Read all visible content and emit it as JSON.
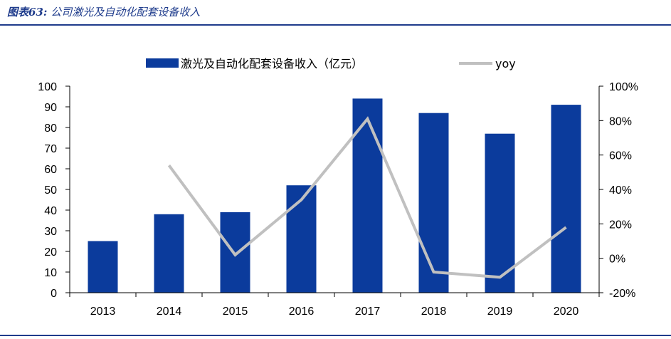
{
  "figure": {
    "label": "图表63:",
    "caption": "公司激光及自动化配套设备收入"
  },
  "colors": {
    "bar": "#0b3b9c",
    "line": "#c0c0c0",
    "accent": "#1f3c8c"
  },
  "chart_data": {
    "type": "bar",
    "categories": [
      "2013",
      "2014",
      "2015",
      "2016",
      "2017",
      "2018",
      "2019",
      "2020"
    ],
    "series": [
      {
        "name": "激光及自动化配套设备收入（亿元）",
        "type": "bar",
        "axis": "left",
        "values": [
          25,
          38,
          39,
          52,
          94,
          87,
          77,
          91
        ]
      },
      {
        "name": "yoy",
        "type": "line",
        "axis": "right",
        "values": [
          null,
          54,
          2,
          34,
          81,
          -8,
          -11,
          18
        ]
      }
    ],
    "ylim_left": [
      0,
      100
    ],
    "yticks_left": [
      "0",
      "10",
      "20",
      "30",
      "40",
      "50",
      "60",
      "70",
      "80",
      "90",
      "100"
    ],
    "ylim_right": [
      -20,
      100
    ],
    "yticks_right": [
      "-20%",
      "0%",
      "20%",
      "40%",
      "60%",
      "80%",
      "100%"
    ],
    "legend_position": "top",
    "grid": false
  }
}
